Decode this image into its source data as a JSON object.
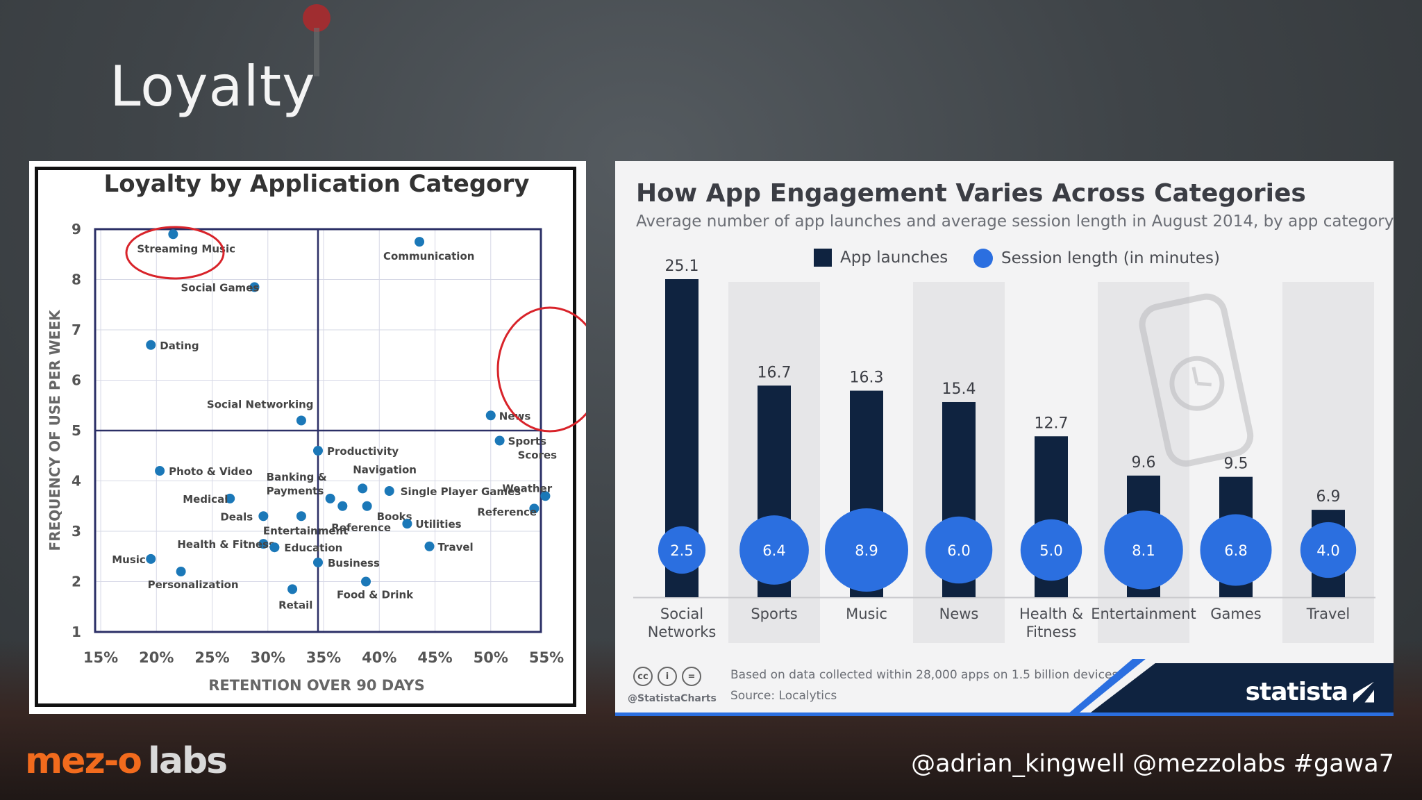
{
  "slide": {
    "title": "Loyalty",
    "handles": "@adrian_kingwell @mezzolabs #gawa7",
    "logo_part1": "mez-o",
    "logo_part2": "labs"
  },
  "colors": {
    "dot_blue": "#1b78b8",
    "highlight_red": "#d8232a",
    "bar_navy": "#0f2340",
    "bubble_blue": "#2b6fe0",
    "brand_orange": "#f26b1d"
  },
  "chart_data": [
    {
      "type": "scatter",
      "title": "Loyalty by Application Category",
      "xlabel": "RETENTION OVER 90 DAYS",
      "ylabel": "FREQUENCY OF USE PER WEEK",
      "xlim": [
        0.145,
        0.545
      ],
      "ylim": [
        1,
        9
      ],
      "x_ticks": [
        "15%",
        "20%",
        "25%",
        "30%",
        "35%",
        "40%",
        "45%",
        "50%",
        "55%"
      ],
      "y_ticks": [
        "1",
        "2",
        "3",
        "4",
        "5",
        "6",
        "7",
        "8",
        "9"
      ],
      "quadrant_lines": {
        "x": 0.345,
        "y": 5.0
      },
      "points": [
        {
          "name": "Streaming Music",
          "x": 0.215,
          "y": 8.9,
          "highlight": true
        },
        {
          "name": "Communication",
          "x": 0.436,
          "y": 8.75
        },
        {
          "name": "Social Games",
          "x": 0.288,
          "y": 7.85
        },
        {
          "name": "Dating",
          "x": 0.195,
          "y": 6.7
        },
        {
          "name": "Social Networking",
          "x": 0.33,
          "y": 5.2
        },
        {
          "name": "News",
          "x": 0.5,
          "y": 5.3,
          "highlight": true
        },
        {
          "name": "Sports Scores",
          "x": 0.508,
          "y": 4.8,
          "highlight": true
        },
        {
          "name": "Weather",
          "x": 0.549,
          "y": 3.7,
          "highlight": true
        },
        {
          "name": "Reference",
          "x": 0.539,
          "y": 3.45
        },
        {
          "name": "Productivity",
          "x": 0.345,
          "y": 4.6
        },
        {
          "name": "Photo & Video",
          "x": 0.203,
          "y": 4.2
        },
        {
          "name": "Medical",
          "x": 0.266,
          "y": 3.65
        },
        {
          "name": "Deals",
          "x": 0.296,
          "y": 3.3
        },
        {
          "name": "Banking & Payments",
          "x": 0.356,
          "y": 3.65
        },
        {
          "name": "Navigation",
          "x": 0.385,
          "y": 3.85
        },
        {
          "name": "Single Player Games",
          "x": 0.409,
          "y": 3.8
        },
        {
          "name": "Books",
          "x": 0.389,
          "y": 3.5
        },
        {
          "name": "Entertainment",
          "x": 0.33,
          "y": 3.3
        },
        {
          "name": "Reference",
          "x": 0.367,
          "y": 3.5
        },
        {
          "name": "Utilities",
          "x": 0.425,
          "y": 3.15
        },
        {
          "name": "Health & Fitness",
          "x": 0.296,
          "y": 2.75
        },
        {
          "name": "Education",
          "x": 0.306,
          "y": 2.68
        },
        {
          "name": "Travel",
          "x": 0.445,
          "y": 2.7
        },
        {
          "name": "Music",
          "x": 0.195,
          "y": 2.45
        },
        {
          "name": "Personalization",
          "x": 0.222,
          "y": 2.2
        },
        {
          "name": "Business",
          "x": 0.345,
          "y": 2.38
        },
        {
          "name": "Food & Drink",
          "x": 0.388,
          "y": 2.0
        },
        {
          "name": "Retail",
          "x": 0.322,
          "y": 1.85
        }
      ]
    },
    {
      "type": "bar",
      "title": "How App Engagement Varies Across Categories",
      "subtitle": "Average number of app launches and average session length in August 2014, by app category",
      "categories": [
        "Social Networks",
        "Sports",
        "Music",
        "News",
        "Health & Fitness",
        "Entertainment",
        "Games",
        "Travel"
      ],
      "category_lines": [
        [
          "Social",
          "Networks"
        ],
        [
          "Sports"
        ],
        [
          "Music"
        ],
        [
          "News"
        ],
        [
          "Health &",
          "Fitness"
        ],
        [
          "Entertainment"
        ],
        [
          "Games"
        ],
        [
          "Travel"
        ]
      ],
      "series": [
        {
          "name": "App launches",
          "values": [
            25.1,
            16.7,
            16.3,
            15.4,
            12.7,
            9.6,
            9.5,
            6.9
          ]
        },
        {
          "name": "Session length (in minutes)",
          "values": [
            2.5,
            6.4,
            8.9,
            6.0,
            5.0,
            8.1,
            6.8,
            4.0
          ]
        }
      ],
      "ylim": [
        0,
        25.1
      ],
      "footnote": "Based on data collected within 28,000 apps on 1.5 billion devices",
      "source": "Source: Localytics",
      "credit": "@StatistaCharts",
      "brand": "statista"
    }
  ]
}
